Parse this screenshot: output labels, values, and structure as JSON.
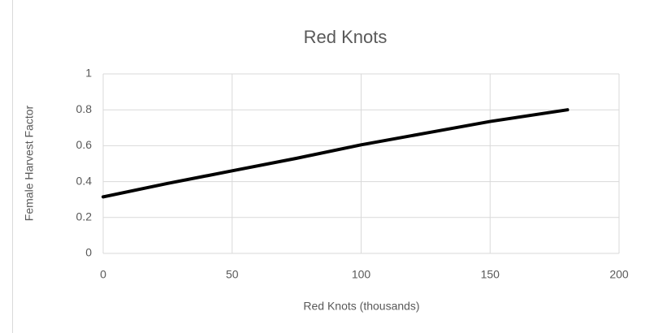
{
  "chart_data": {
    "type": "line",
    "title": "Red Knots",
    "x_label": "Red Knots (thousands)",
    "y_label": "Female Harvest Factor",
    "x": [
      0,
      25,
      50,
      75,
      100,
      125,
      150,
      180
    ],
    "series": [
      {
        "color": "#000000",
        "values": [
          0.315,
          0.39,
          0.46,
          0.53,
          0.605,
          0.67,
          0.735,
          0.8
        ]
      }
    ],
    "xlim": [
      0,
      200
    ],
    "xticks": [
      0,
      50,
      100,
      150,
      200
    ],
    "ylim": [
      0,
      1
    ],
    "yticks": [
      0,
      0.2,
      0.4,
      0.6,
      0.8,
      1
    ],
    "grid": true
  }
}
